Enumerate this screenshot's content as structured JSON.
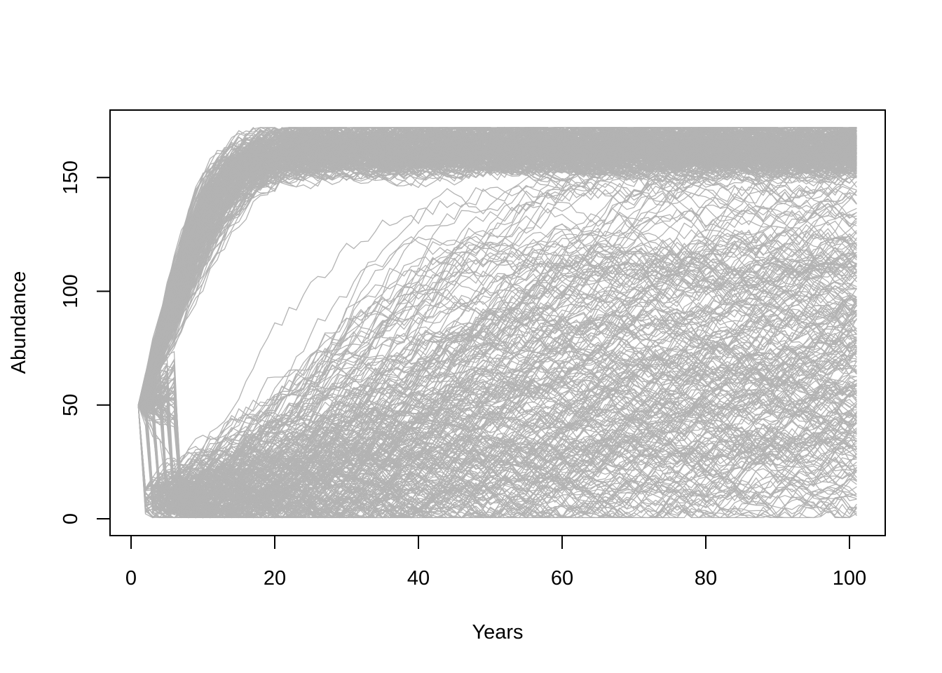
{
  "chart_data": {
    "type": "line",
    "title": "",
    "xlabel": "Years",
    "ylabel": "Abundance",
    "xlim": [
      1,
      101
    ],
    "ylim": [
      0,
      172
    ],
    "x_ticks": [
      0,
      20,
      40,
      60,
      80,
      100
    ],
    "y_ticks": [
      0,
      50,
      100,
      150
    ],
    "line_color": "#b3b3b3",
    "grid": false,
    "legend": "none",
    "series_groups": [
      {
        "description_of_shape": "logistic growth from a fixed start value to a carrying capacity, with year-to-year noise",
        "initial_abundance": 50,
        "carrying_capacity_range": [
          155,
          172
        ],
        "growth_rate_range": [
          0.18,
          0.3
        ],
        "x": [
          1,
          6,
          11,
          16,
          21,
          31,
          41,
          61,
          81,
          101
        ],
        "y": [
          50,
          80,
          115,
          138,
          152,
          164,
          168,
          169,
          170,
          170
        ]
      },
      {
        "description_of_shape": "early crash to low abundance followed by slow recovery, many runs staying low",
        "initial_abundance": 50,
        "crash_range": [
          2,
          14
        ],
        "x": [
          1,
          3,
          11,
          21,
          41,
          61,
          81,
          101
        ],
        "y": [
          50,
          10,
          20,
          35,
          70,
          110,
          140,
          160
        ]
      }
    ]
  }
}
